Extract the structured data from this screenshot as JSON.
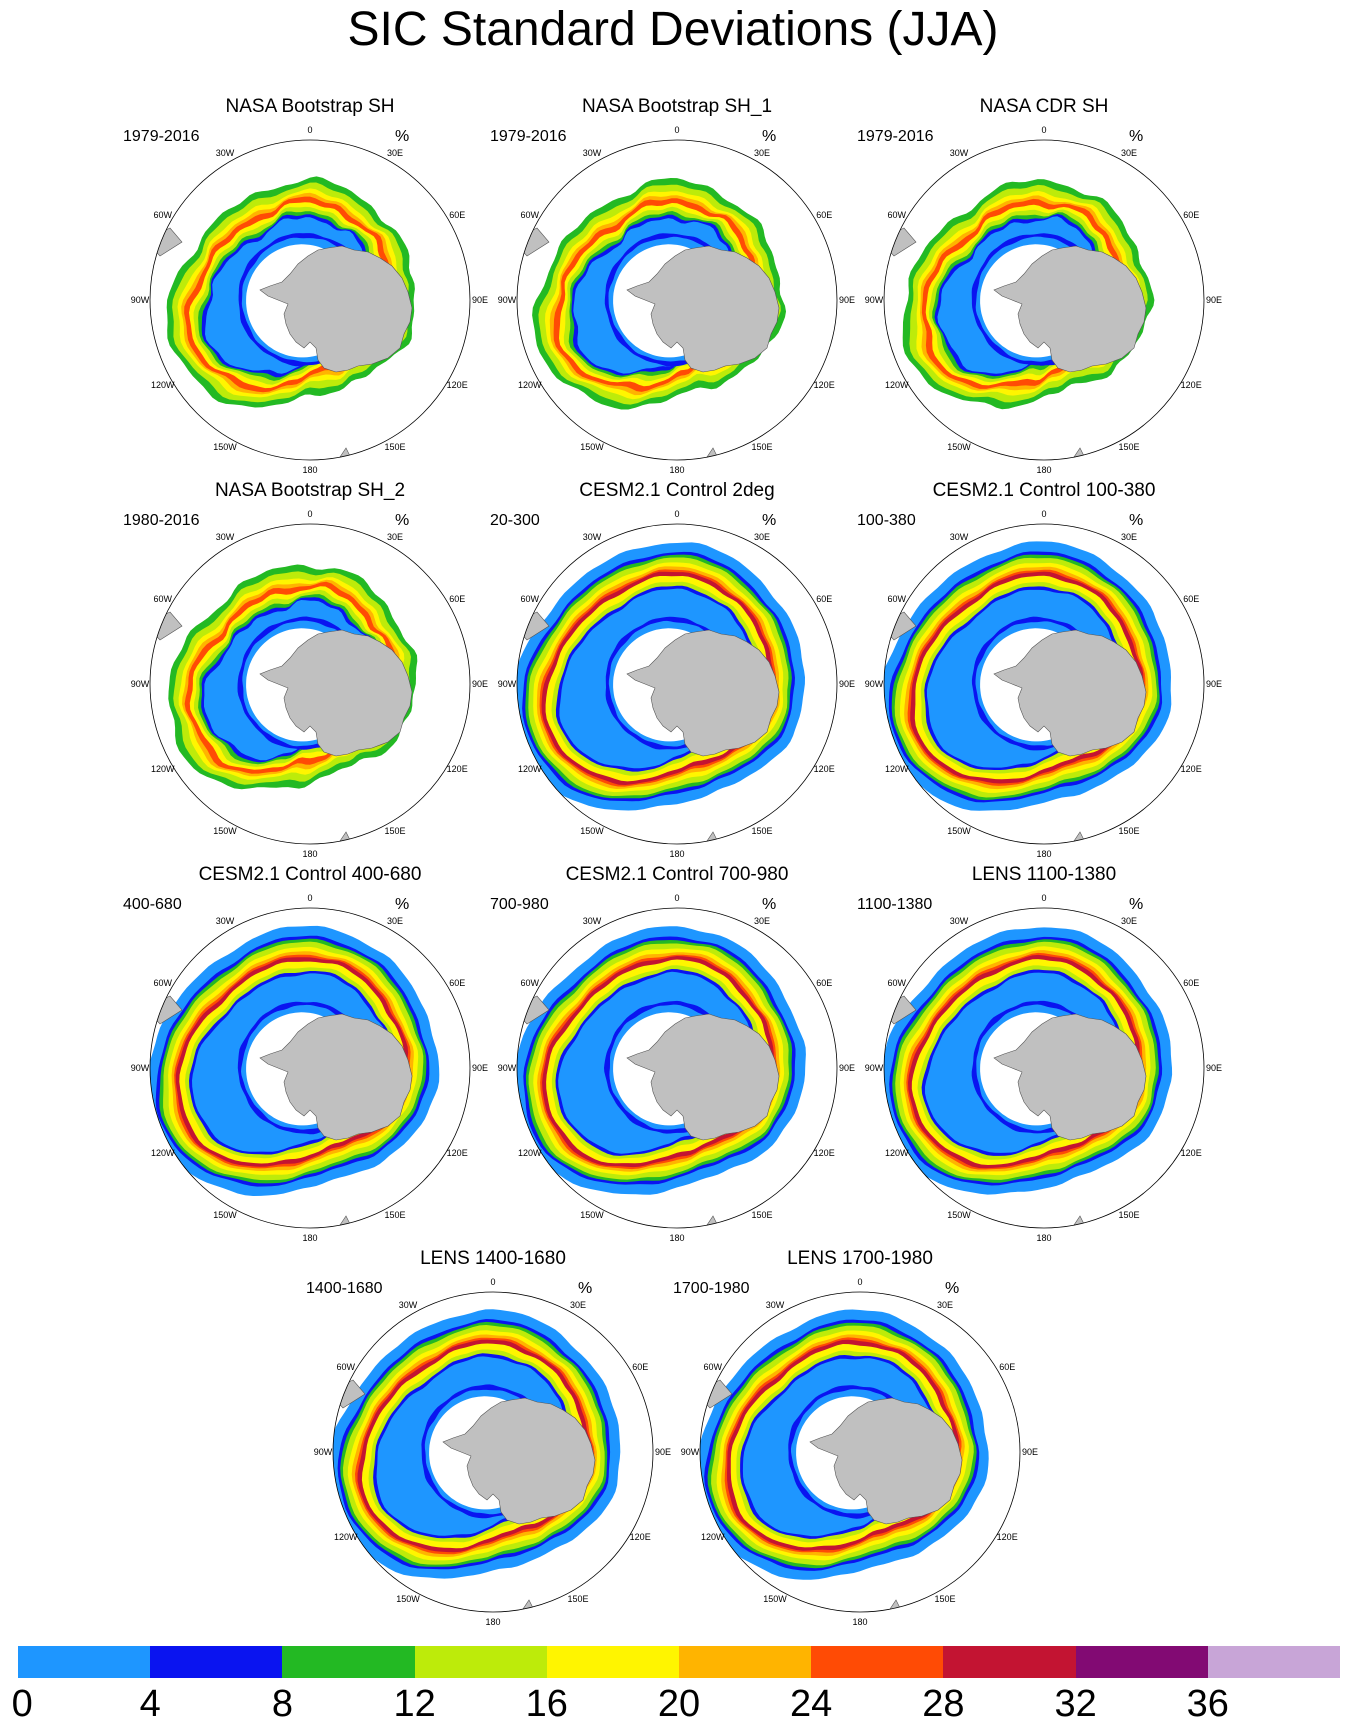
{
  "title": "SIC Standard Deviations (JJA)",
  "unit": "%",
  "longitude_labels": [
    "0",
    "30E",
    "60E",
    "90E",
    "120E",
    "150E",
    "180",
    "150W",
    "120W",
    "90W",
    "60W",
    "30W"
  ],
  "colors": {
    "land": "#c0c0c0",
    "polar_ice_interior": "#ffffff",
    "frame": "#000000"
  },
  "colorbar": {
    "boundaries": [
      "0",
      "4",
      "8",
      "12",
      "16",
      "20",
      "24",
      "28",
      "32",
      "36"
    ],
    "colors": [
      "#1e96ff",
      "#0a14f0",
      "#23b923",
      "#bdeb0a",
      "#fff500",
      "#ffb400",
      "#ff4b05",
      "#c31432",
      "#820a73",
      "#c8a5d7"
    ]
  },
  "panels": [
    {
      "title": "NASA Bootstrap SH",
      "period": "1979-2016",
      "kind": "obs"
    },
    {
      "title": "NASA Bootstrap SH_1",
      "period": "1979-2016",
      "kind": "obs"
    },
    {
      "title": "NASA CDR SH",
      "period": "1979-2016",
      "kind": "obs"
    },
    {
      "title": "NASA Bootstrap SH_2",
      "period": "1980-2016",
      "kind": "obs"
    },
    {
      "title": "CESM2.1 Control 2deg",
      "period": "20-300",
      "kind": "model"
    },
    {
      "title": "CESM2.1 Control 100-380",
      "period": "100-380",
      "kind": "model"
    },
    {
      "title": "CESM2.1 Control 400-680",
      "period": "400-680",
      "kind": "model"
    },
    {
      "title": "CESM2.1 Control 700-980",
      "period": "700-980",
      "kind": "model"
    },
    {
      "title": "LENS 1100-1380",
      "period": "1100-1380",
      "kind": "model"
    },
    {
      "title": "LENS 1400-1680",
      "period": "1400-1680",
      "kind": "model"
    },
    {
      "title": "LENS 1700-1980",
      "period": "1700-1980",
      "kind": "model"
    }
  ]
}
